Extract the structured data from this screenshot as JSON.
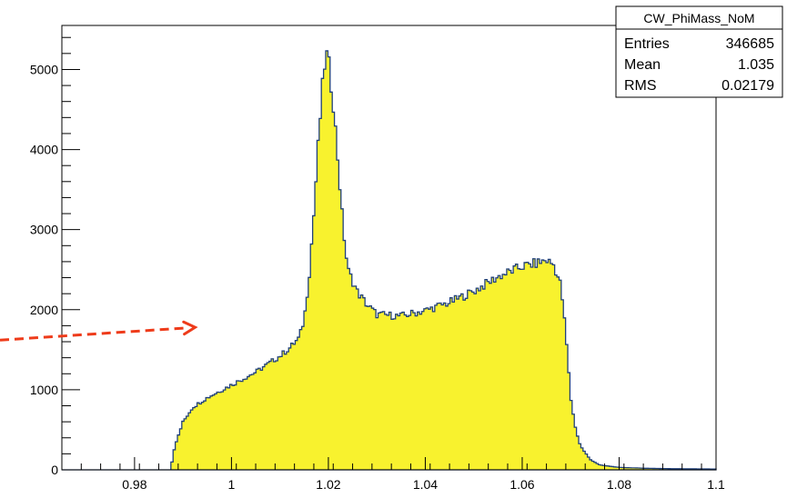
{
  "chart_data": {
    "type": "area",
    "title": "",
    "xlabel": "",
    "ylabel": "",
    "xlim": [
      0.965,
      1.1
    ],
    "ylim": [
      0,
      5550
    ],
    "x_ticks": [
      0.98,
      1,
      1.02,
      1.04,
      1.06,
      1.08,
      1.1
    ],
    "x_tick_labels": [
      "0.98",
      "1",
      "1.02",
      "1.04",
      "1.06",
      "1.08",
      "1.1"
    ],
    "y_ticks": [
      0,
      1000,
      2000,
      3000,
      4000,
      5000
    ],
    "y_tick_labels": [
      "0",
      "1000",
      "2000",
      "3000",
      "4000",
      "5000"
    ],
    "grid": false,
    "fill_color": "#f8f22e",
    "line_color": "#1f3f7a",
    "series": [
      {
        "x": [
          0.965,
          0.985,
          0.9875,
          0.988,
          0.989,
          0.99,
          0.992,
          0.995,
          1.0,
          1.005,
          1.01,
          1.012,
          1.014,
          1.015,
          1.016,
          1.017,
          1.018,
          1.019,
          1.0195,
          1.02,
          1.021,
          1.022,
          1.023,
          1.024,
          1.026,
          1.028,
          1.03,
          1.035,
          1.04,
          1.045,
          1.05,
          1.055,
          1.06,
          1.063,
          1.065,
          1.0665,
          1.068,
          1.069,
          1.07,
          1.071,
          1.072,
          1.074,
          1.076,
          1.08,
          1.085,
          1.09,
          1.095,
          1.1
        ],
        "y": [
          0,
          0,
          0,
          220,
          420,
          600,
          780,
          900,
          1060,
          1220,
          1420,
          1520,
          1650,
          1880,
          2400,
          3200,
          4150,
          4950,
          5200,
          5100,
          4600,
          3850,
          3050,
          2500,
          2220,
          2060,
          1940,
          1920,
          1990,
          2090,
          2230,
          2410,
          2540,
          2580,
          2620,
          2560,
          2300,
          1700,
          900,
          520,
          300,
          130,
          60,
          30,
          20,
          15,
          12,
          10
        ]
      }
    ],
    "stats_box": {
      "name": "CW_PhiMass_NoM",
      "rows": [
        {
          "label": "Entries",
          "value": "346685"
        },
        {
          "label": "Mean",
          "value": "1.035"
        },
        {
          "label": "RMS",
          "value": "0.02179"
        }
      ]
    },
    "annotation": {
      "type": "arrow",
      "style": "dashed",
      "color": "#ee3b1a",
      "from": [
        0.965,
        1620
      ],
      "to": [
        0.9925,
        1780
      ]
    }
  }
}
